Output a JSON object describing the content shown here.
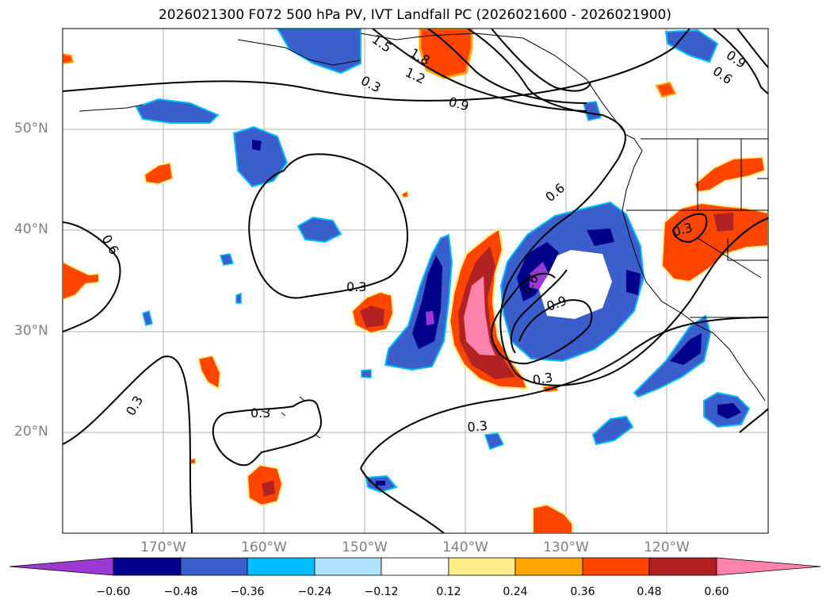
{
  "title": "2026021300 F072 500 hPa PV, IVT Landfall PC (2026021600 - 2026021900)",
  "lat_labels": [
    "50°N",
    "40°N",
    "30°N",
    "20°N"
  ],
  "lon_labels": [
    "170°W",
    "160°W",
    "150°W",
    "140°W",
    "130°W",
    "120°W"
  ],
  "contour_labels": [
    "1.5",
    "1.8",
    "1.2",
    "0.9",
    "0.3",
    "0.9",
    "0.6",
    "0.6",
    "0.6",
    "0.3",
    "0.3",
    "0.6",
    "0.9",
    "0.3",
    "0.3",
    "0.3",
    "0.3"
  ],
  "colorbar": {
    "colors": [
      "#9c38d4",
      "#00008b",
      "#3a5fcd",
      "#00bfff",
      "#b0e2ff",
      "#ffffff",
      "#ffec8b",
      "#ffa500",
      "#ff4500",
      "#b22222",
      "#ff82ab"
    ],
    "tick_labels": [
      "−0.60",
      "−0.48",
      "−0.36",
      "−0.24",
      "−0.12",
      "0.12",
      "0.24",
      "0.36",
      "0.48",
      "0.60"
    ]
  },
  "colors": {
    "lat_lon_label": "#7f7f7f",
    "gridline": "#b0b0b0",
    "contour": "#000000"
  }
}
